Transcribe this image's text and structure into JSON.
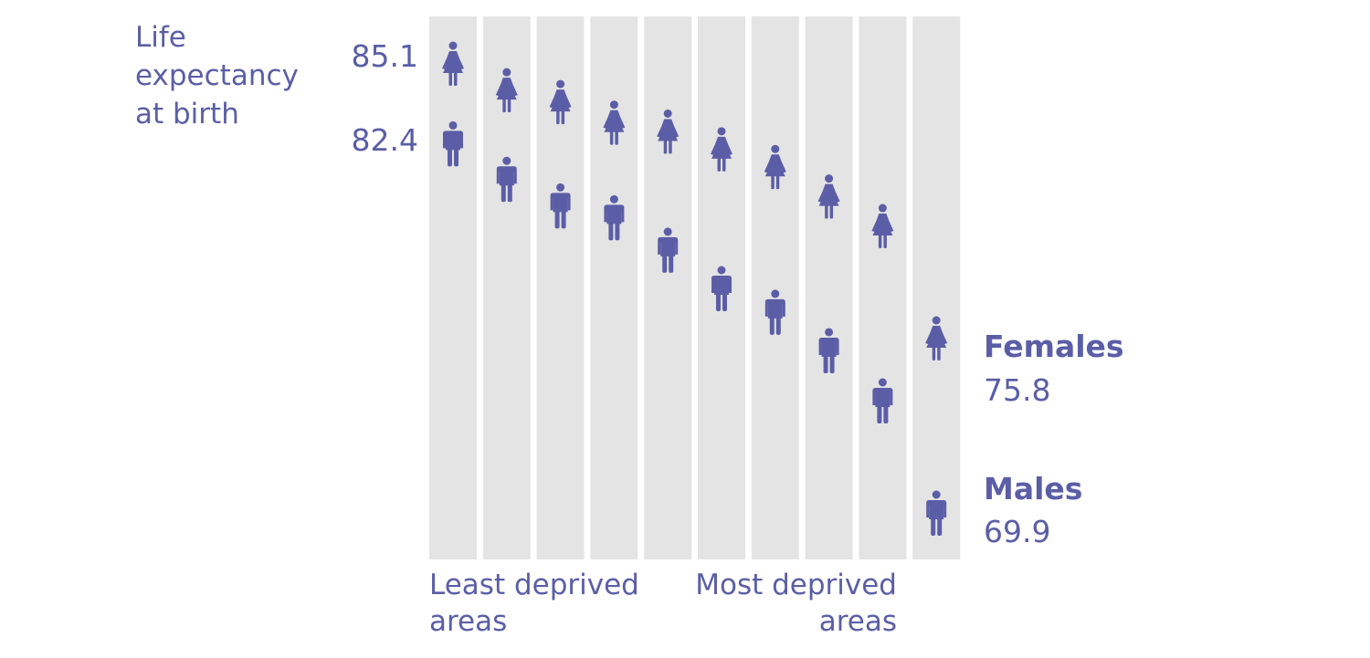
{
  "colors": {
    "figure": "#5b5ea6",
    "text": "#5b5ea6",
    "column": "#e4e4e4"
  },
  "ylabel": "Life\nexpectancy\nat birth",
  "labels": {
    "top_female": "85.1",
    "top_male": "82.4",
    "females_name": "Females",
    "females_value": "75.8",
    "males_name": "Males",
    "males_value": "69.9",
    "least_deprived": "Least deprived\nareas",
    "most_deprived": "Most deprived\nareas"
  },
  "chart_data": {
    "type": "scatter",
    "ylabel": "Life expectancy at birth",
    "x": [
      1,
      2,
      3,
      4,
      5,
      6,
      7,
      8,
      9,
      10
    ],
    "series": [
      {
        "name": "Females",
        "icon": "female-figure-icon",
        "values": [
          85.1,
          84.2,
          83.8,
          83.1,
          82.8,
          82.2,
          81.6,
          80.6,
          79.6,
          75.8
        ]
      },
      {
        "name": "Males",
        "icon": "male-figure-icon",
        "values": [
          82.4,
          81.2,
          80.3,
          79.9,
          78.8,
          77.5,
          76.7,
          75.4,
          73.7,
          69.9
        ]
      }
    ],
    "ylim": [
      69.9,
      85.1
    ],
    "legend": "right"
  }
}
